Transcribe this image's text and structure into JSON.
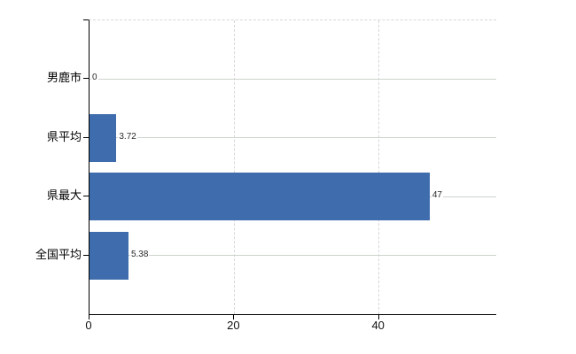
{
  "chart_data": {
    "type": "bar",
    "orientation": "horizontal",
    "categories": [
      "男鹿市",
      "県平均",
      "県最大",
      "全国平均"
    ],
    "values": [
      0,
      3.72,
      47,
      5.38
    ],
    "value_labels": [
      "0",
      "3.72",
      "47",
      "5.38"
    ],
    "x_ticks": [
      0,
      20,
      40
    ],
    "x_tick_labels": [
      "0",
      "20",
      "40"
    ],
    "xlim": [
      0,
      56.2
    ],
    "grid": "on",
    "legend": "none",
    "colors": {
      "bar": "#3e6cac",
      "axis": "#000000",
      "h_gridline": "#ccd4cc",
      "v_gridline": "#d8d6da",
      "background": "#ffffff",
      "value_label_text": "#2b2b2b",
      "tick_label_text": "#111111"
    }
  }
}
